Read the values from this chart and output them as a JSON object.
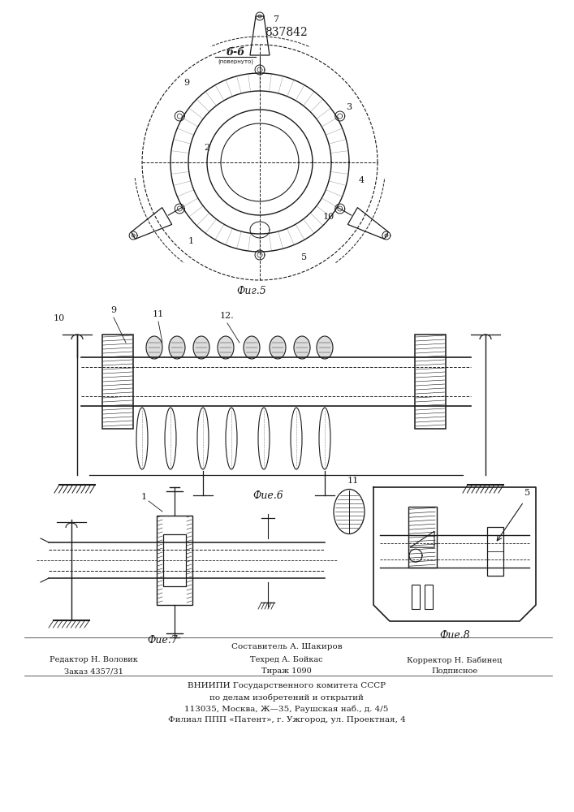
{
  "patent_number": "837842",
  "background_color": "#ffffff",
  "line_color": "#1a1a1a",
  "fig5_label": "Фиг.5",
  "fig6_label": "Фие.6",
  "fig7_label": "Фие.7",
  "fig8_label": "Фие.8",
  "section_label": "б-б",
  "footer_text1": "Составитель А. Шакиров",
  "footer_text2_left1": "Редактор Н. Воловик",
  "footer_text2_mid1": "Техред А. Бойкас",
  "footer_text2_right1": "Корректор Н. Бабинец",
  "footer_text3_left": "Заказ 4357/31",
  "footer_text3_mid": "Тираж 1090",
  "footer_text3_right": "Подписное",
  "footer_vniiipi1": "ВНИИПИ Государственного комитета СССР",
  "footer_vniiipi2": "по делам изобретений и открытий",
  "footer_vniiipi3": "113035, Москва, Ж—35, Раушская наб., д. 4/5",
  "footer_vniiipi4": "Филиал ППП «Патент», г. Ужгород, ул. Проектная, 4"
}
